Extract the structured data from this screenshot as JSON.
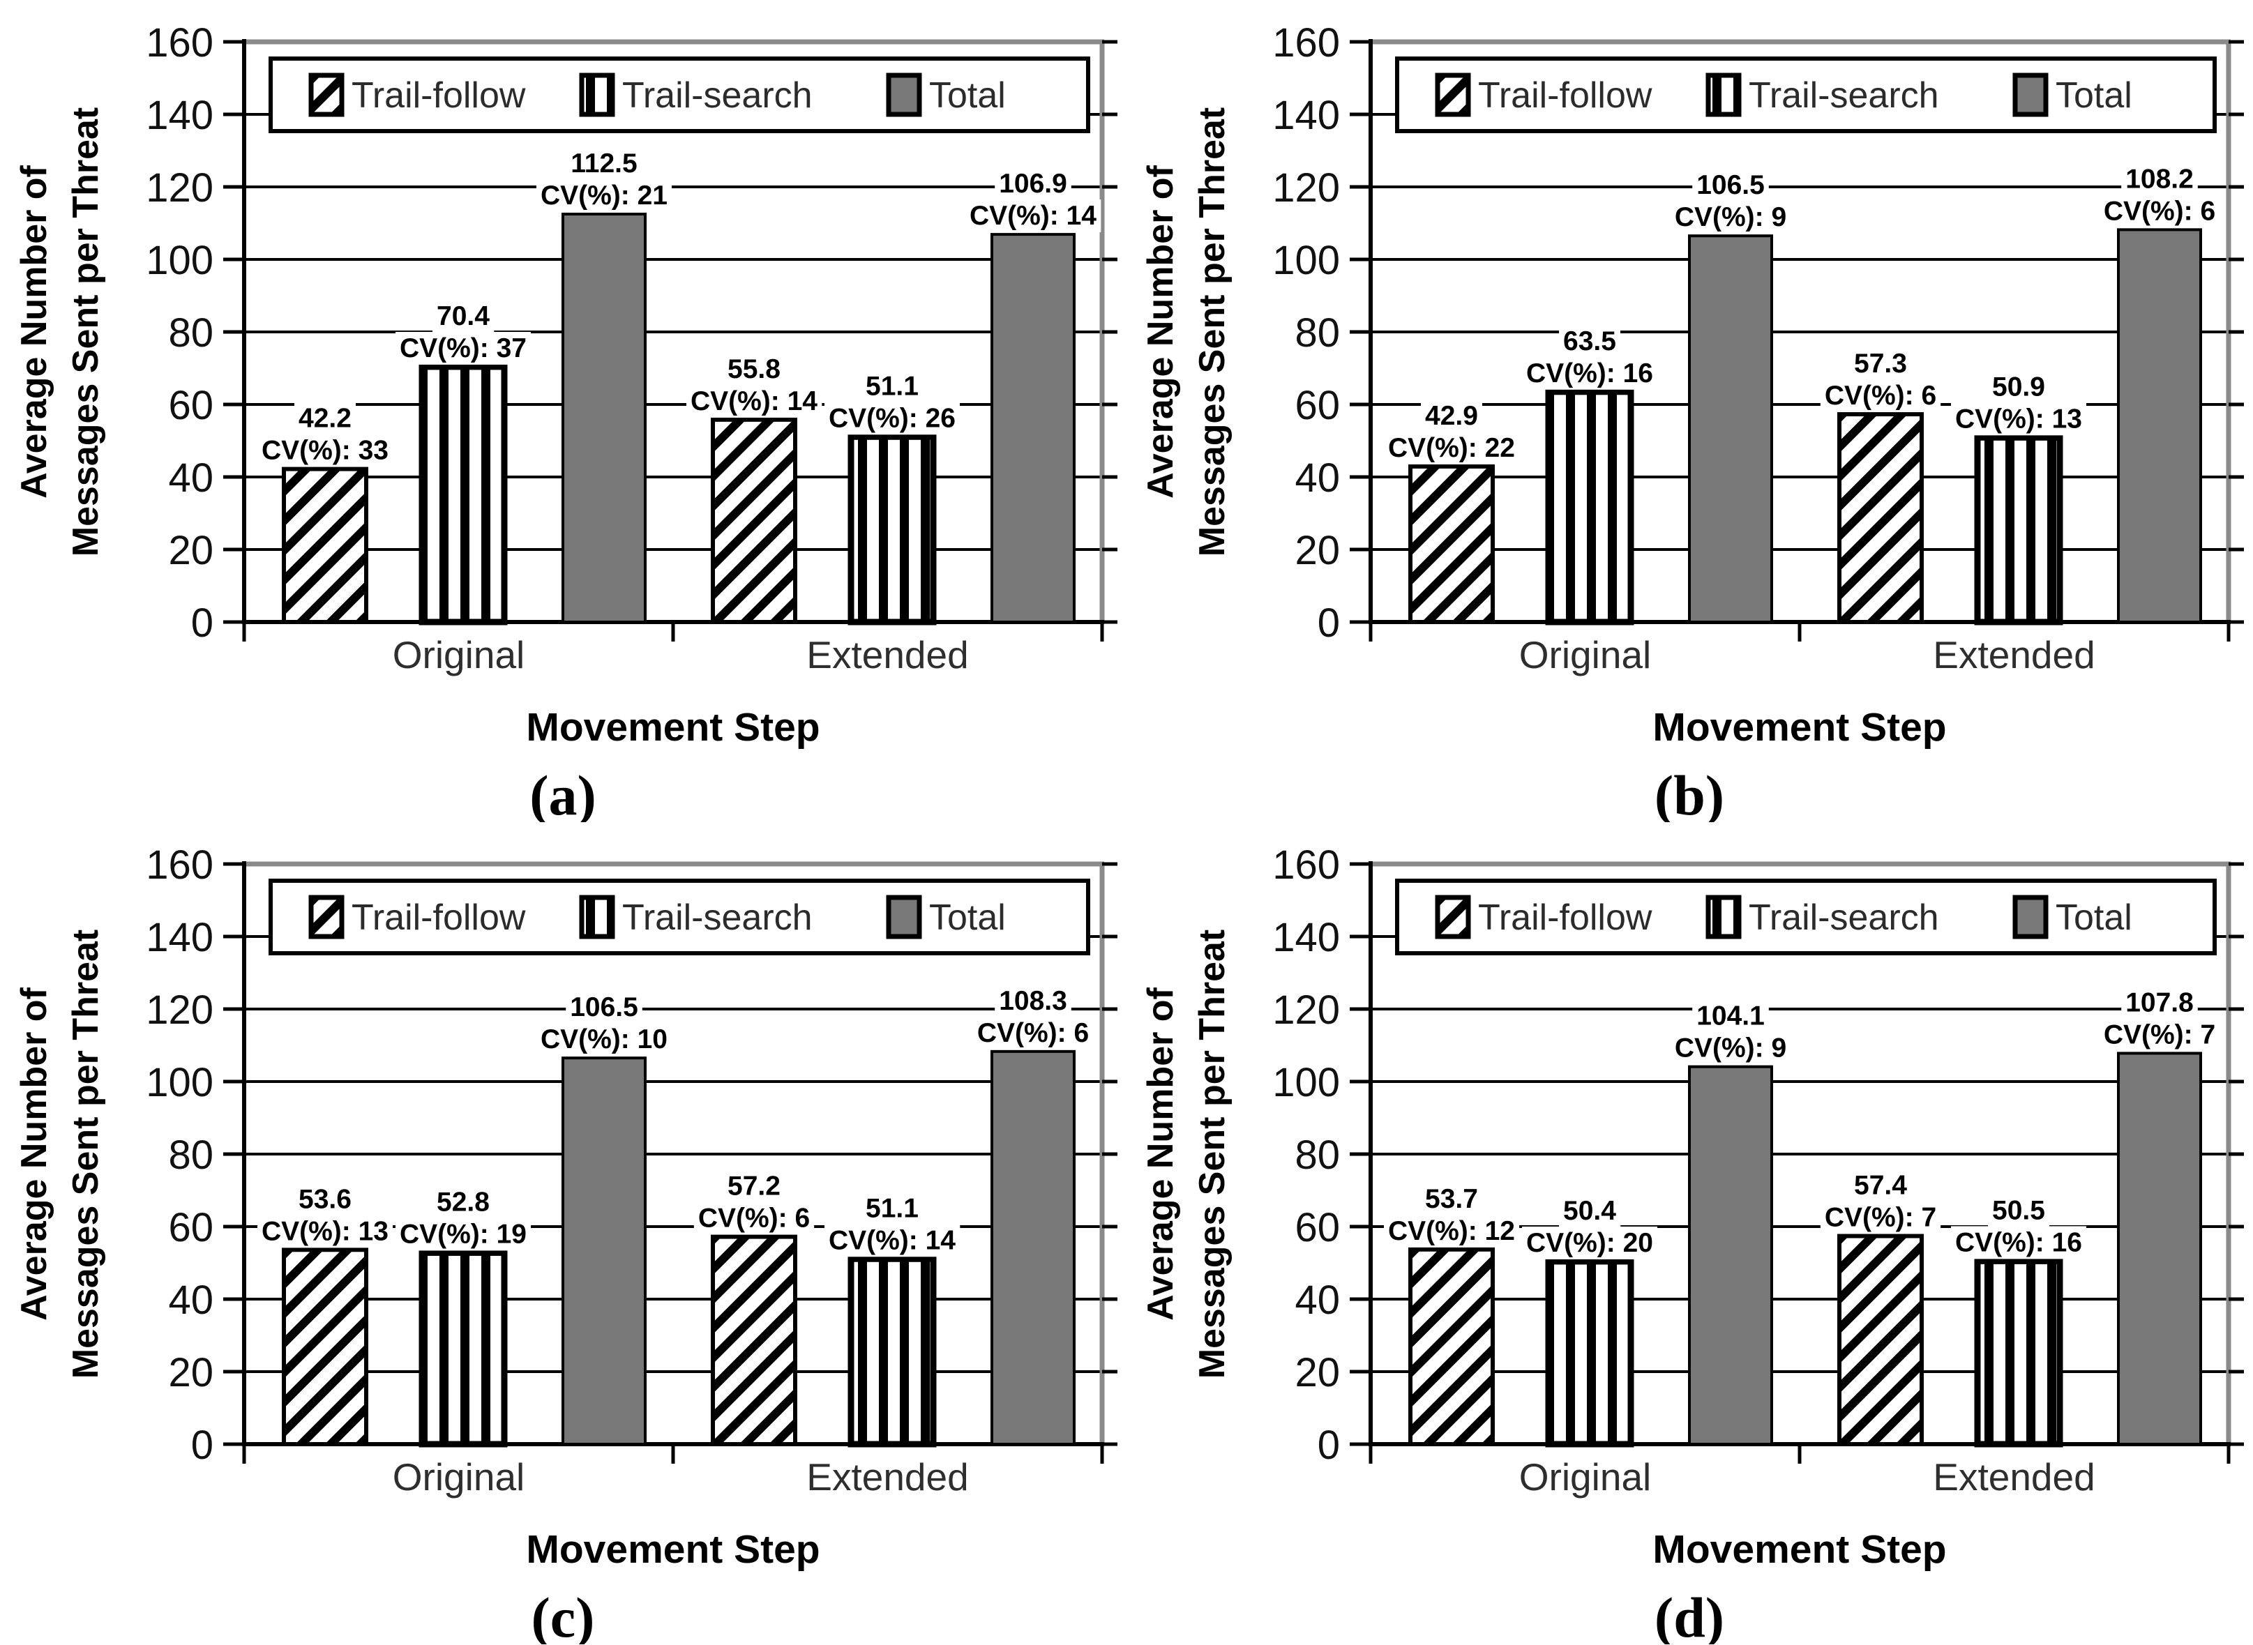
{
  "figure": {
    "background": "#ffffff",
    "colors": {
      "total_fill": "#787878",
      "axis_black": "#000000",
      "frame_gray": "#8a8a8a",
      "gridline": "#000000",
      "label_text": "#000000"
    },
    "legend": [
      "Trail-follow",
      "Trail-search",
      "Total"
    ],
    "legend_swatches": [
      "diagonal-hatch-swatch",
      "vertical-hatch-swatch",
      "solid-gray-swatch"
    ],
    "ylabel_lines": [
      "Average Number of",
      "Messages Sent per Threat"
    ],
    "xlabel": "Movement Step",
    "categories": [
      "Original",
      "Extended"
    ],
    "yticks": [
      0,
      20,
      40,
      60,
      80,
      100,
      120,
      140,
      160
    ],
    "ylim": [
      0,
      160
    ],
    "cv_prefix": "CV(%):",
    "grid": "horizontal-on"
  },
  "chart_data": [
    {
      "type": "bar",
      "label": "(a)",
      "categories": [
        "Original",
        "Extended"
      ],
      "xlabel": "Movement Step",
      "ylabel": "Average Number of Messages Sent per Threat",
      "ylim": [
        0,
        160
      ],
      "legend_position": "top-inside",
      "series": [
        {
          "name": "Trail-follow",
          "values": [
            42.2,
            55.8
          ],
          "cv_percent": [
            33,
            14
          ]
        },
        {
          "name": "Trail-search",
          "values": [
            70.4,
            51.1
          ],
          "cv_percent": [
            37,
            26
          ]
        },
        {
          "name": "Total",
          "values": [
            112.5,
            106.9
          ],
          "cv_percent": [
            21,
            14
          ]
        }
      ]
    },
    {
      "type": "bar",
      "label": "(b)",
      "categories": [
        "Original",
        "Extended"
      ],
      "xlabel": "Movement Step",
      "ylabel": "Average Number of Messages Sent per Threat",
      "ylim": [
        0,
        160
      ],
      "legend_position": "top-inside",
      "series": [
        {
          "name": "Trail-follow",
          "values": [
            42.9,
            57.3
          ],
          "cv_percent": [
            22,
            6
          ]
        },
        {
          "name": "Trail-search",
          "values": [
            63.5,
            50.9
          ],
          "cv_percent": [
            16,
            13
          ]
        },
        {
          "name": "Total",
          "values": [
            106.5,
            108.2
          ],
          "cv_percent": [
            9,
            6
          ]
        }
      ]
    },
    {
      "type": "bar",
      "label": "(c)",
      "categories": [
        "Original",
        "Extended"
      ],
      "xlabel": "Movement Step",
      "ylabel": "Average Number of Messages Sent per Threat",
      "ylim": [
        0,
        160
      ],
      "legend_position": "top-inside",
      "series": [
        {
          "name": "Trail-follow",
          "values": [
            53.6,
            57.2
          ],
          "cv_percent": [
            13,
            6
          ]
        },
        {
          "name": "Trail-search",
          "values": [
            52.8,
            51.1
          ],
          "cv_percent": [
            19,
            14
          ]
        },
        {
          "name": "Total",
          "values": [
            106.5,
            108.3
          ],
          "cv_percent": [
            10,
            6
          ]
        }
      ]
    },
    {
      "type": "bar",
      "label": "(d)",
      "categories": [
        "Original",
        "Extended"
      ],
      "xlabel": "Movement Step",
      "ylabel": "Average Number of Messages Sent per Threat",
      "ylim": [
        0,
        160
      ],
      "legend_position": "top-inside",
      "series": [
        {
          "name": "Trail-follow",
          "values": [
            53.7,
            57.4
          ],
          "cv_percent": [
            12,
            7
          ]
        },
        {
          "name": "Trail-search",
          "values": [
            50.4,
            50.5
          ],
          "cv_percent": [
            20,
            16
          ]
        },
        {
          "name": "Total",
          "values": [
            104.1,
            107.8
          ],
          "cv_percent": [
            9,
            7
          ]
        }
      ]
    }
  ]
}
